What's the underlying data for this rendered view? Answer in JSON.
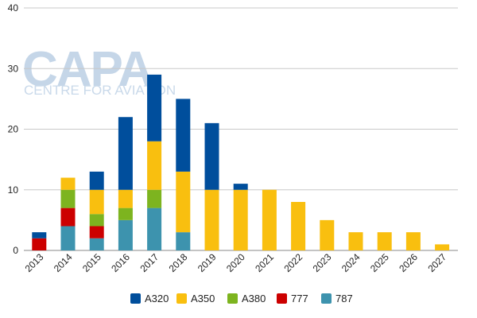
{
  "watermark": {
    "brand": "CAPA",
    "tagline": "CENTRE FOR AVIATION"
  },
  "chart_data": {
    "type": "bar",
    "stacked": true,
    "title": "",
    "xlabel": "",
    "ylabel": "",
    "ylim": [
      0,
      40
    ],
    "yticks": [
      0,
      10,
      20,
      30,
      40
    ],
    "grid": true,
    "legend_position": "bottom",
    "categories": [
      "2013",
      "2014",
      "2015",
      "2016",
      "2017",
      "2018",
      "2019",
      "2020",
      "2021",
      "2022",
      "2023",
      "2024",
      "2025",
      "2026",
      "2027"
    ],
    "series": [
      {
        "name": "787",
        "color": "#3d93ae",
        "values": [
          0,
          4,
          2,
          5,
          7,
          3,
          0,
          0,
          0,
          0,
          0,
          0,
          0,
          0,
          0
        ]
      },
      {
        "name": "777",
        "color": "#cc0000",
        "values": [
          2,
          3,
          2,
          0,
          0,
          0,
          0,
          0,
          0,
          0,
          0,
          0,
          0,
          0,
          0
        ]
      },
      {
        "name": "A380",
        "color": "#7db41f",
        "values": [
          0,
          3,
          2,
          2,
          3,
          0,
          0,
          0,
          0,
          0,
          0,
          0,
          0,
          0,
          0
        ]
      },
      {
        "name": "A350",
        "color": "#f9bf0f",
        "values": [
          0,
          2,
          4,
          3,
          8,
          10,
          10,
          10,
          10,
          8,
          5,
          3,
          3,
          3,
          1
        ]
      },
      {
        "name": "A320",
        "color": "#004e9c",
        "values": [
          1,
          0,
          3,
          12,
          11,
          12,
          11,
          1,
          0,
          0,
          0,
          0,
          0,
          0,
          0
        ]
      }
    ],
    "legend_order": [
      "A320",
      "A350",
      "A380",
      "777",
      "787"
    ]
  }
}
